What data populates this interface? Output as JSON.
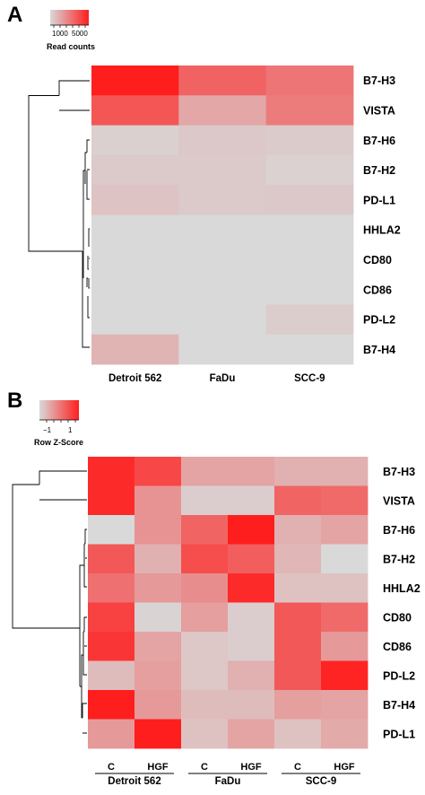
{
  "chart_data": [
    {
      "type": "heatmap",
      "panel": "A",
      "legend": {
        "title": "Read counts",
        "tick_labels": [
          "1000",
          "5000"
        ]
      },
      "rows": [
        "B7-H3",
        "VISTA",
        "B7-H6",
        "B7-H2",
        "PD-L1",
        "HHLA2",
        "CD80",
        "CD86",
        "PD-L2",
        "B7-H4"
      ],
      "columns": [
        "Detroit 562",
        "FaDu",
        "SCC-9"
      ],
      "values": [
        [
          6000,
          3800,
          3200
        ],
        [
          4200,
          1600,
          3000
        ],
        [
          300,
          550,
          450
        ],
        [
          500,
          500,
          250
        ],
        [
          700,
          500,
          550
        ],
        [
          0,
          0,
          0
        ],
        [
          0,
          0,
          0
        ],
        [
          0,
          0,
          0
        ],
        [
          0,
          0,
          400
        ],
        [
          1200,
          0,
          0
        ]
      ]
    },
    {
      "type": "heatmap",
      "panel": "B",
      "legend": {
        "title": "Row Z-Score",
        "tick_labels": [
          "−1",
          "1"
        ]
      },
      "rows": [
        "B7-H3",
        "VISTA",
        "B7-H6",
        "B7-H2",
        "HHLA2",
        "CD80",
        "CD86",
        "PD-L2",
        "B7-H4",
        "PD-L1"
      ],
      "columns": [
        "C",
        "HGF",
        "C",
        "HGF",
        "C",
        "HGF"
      ],
      "column_groups": [
        {
          "label": "Detroit 562",
          "columns": [
            "C",
            "HGF"
          ]
        },
        {
          "label": "FaDu",
          "columns": [
            "C",
            "HGF"
          ]
        },
        {
          "label": "SCC-9",
          "columns": [
            "C",
            "HGF"
          ]
        }
      ],
      "values": [
        [
          1.8,
          1.3,
          -0.3,
          -0.3,
          -0.5,
          -0.5
        ],
        [
          1.8,
          0.0,
          -1.0,
          -1.0,
          0.8,
          0.7
        ],
        [
          -1.2,
          0.0,
          0.8,
          2.0,
          -0.5,
          -0.3
        ],
        [
          1.0,
          -0.5,
          1.2,
          0.9,
          -0.6,
          -1.2
        ],
        [
          0.6,
          -0.1,
          0.1,
          1.8,
          -0.8,
          -0.8
        ],
        [
          1.4,
          -1.1,
          -0.2,
          -1.0,
          1.0,
          0.7
        ],
        [
          1.6,
          -0.3,
          -0.9,
          -1.0,
          1.0,
          -0.1
        ],
        [
          -0.7,
          -0.2,
          -0.9,
          -0.5,
          1.0,
          1.9
        ],
        [
          2.0,
          -0.1,
          -0.7,
          -0.7,
          -0.2,
          -0.3
        ],
        [
          -0.1,
          2.0,
          -0.8,
          -0.3,
          -0.8,
          -0.4
        ]
      ]
    }
  ]
}
